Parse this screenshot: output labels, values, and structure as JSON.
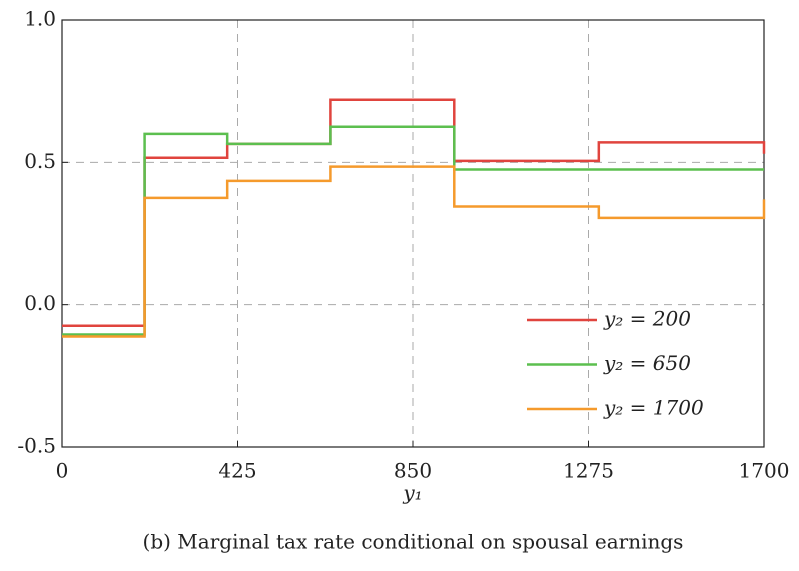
{
  "chart_data": {
    "type": "line",
    "step": "post",
    "caption": "(b) Marginal tax rate conditional on spousal earnings",
    "x_label": "y₁",
    "x": [
      0,
      200,
      400,
      650,
      950,
      1300,
      1700
    ],
    "series": [
      {
        "name": "y₂ = 200",
        "color": "#e0443e",
        "values": [
          -0.074,
          0.516,
          0.565,
          0.72,
          0.505,
          0.57,
          0.53
        ]
      },
      {
        "name": "y₂ = 650",
        "color": "#5cbf4f",
        "values": [
          -0.105,
          0.6,
          0.565,
          0.625,
          0.475,
          0.475,
          0.475
        ]
      },
      {
        "name": "y₂ = 1700",
        "color": "#f59a2c",
        "values": [
          -0.112,
          0.375,
          0.435,
          0.485,
          0.345,
          0.305,
          0.37
        ]
      }
    ],
    "xlim": [
      0,
      1700
    ],
    "xticks": [
      0,
      425,
      850,
      1275,
      1700
    ],
    "ylim": [
      -0.5,
      1.0
    ],
    "yticks": [
      -0.5,
      {
        "value": 0,
        "label": "0.0"
      },
      0.5,
      {
        "value": 1,
        "label": "1.0"
      }
    ],
    "grid": true,
    "legend": "lower right"
  }
}
